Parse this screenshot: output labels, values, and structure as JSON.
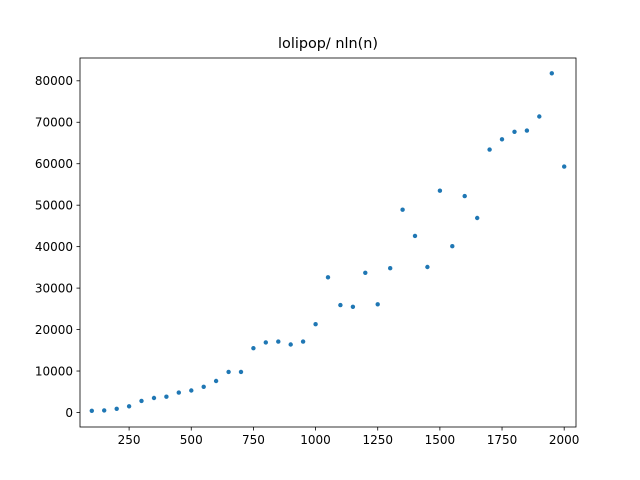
{
  "chart_data": {
    "type": "scatter",
    "title": "lolipop/ nln(n)",
    "xlabel": "",
    "ylabel": "",
    "xlim": [
      52.5,
      2047.5
    ],
    "ylim": [
      -3500,
      85500
    ],
    "x_ticks": [
      250,
      500,
      750,
      1000,
      1250,
      1500,
      1750,
      2000
    ],
    "y_ticks": [
      0,
      10000,
      20000,
      30000,
      40000,
      50000,
      60000,
      70000,
      80000
    ],
    "grid": false,
    "marker_color": "#1f77b4",
    "x": [
      100,
      150,
      200,
      250,
      300,
      350,
      400,
      450,
      500,
      550,
      600,
      650,
      700,
      750,
      800,
      850,
      900,
      950,
      1000,
      1050,
      1100,
      1150,
      1200,
      1250,
      1300,
      1350,
      1400,
      1450,
      1500,
      1550,
      1600,
      1650,
      1700,
      1750,
      1800,
      1850,
      1900,
      1950,
      2000
    ],
    "y": [
      400,
      500,
      900,
      1500,
      2800,
      3500,
      3800,
      4800,
      5300,
      6200,
      7600,
      9800,
      9800,
      15500,
      16900,
      17100,
      16400,
      17100,
      21300,
      32600,
      25900,
      25500,
      33700,
      26100,
      34800,
      48900,
      42600,
      35100,
      53500,
      40100,
      52200,
      46900,
      63400,
      65900,
      67700,
      68000,
      71400,
      81800,
      59300
    ]
  }
}
